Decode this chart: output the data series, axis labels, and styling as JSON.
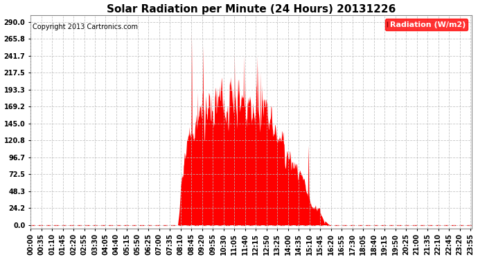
{
  "title": "Solar Radiation per Minute (24 Hours) 20131226",
  "copyright": "Copyright 2013 Cartronics.com",
  "legend_label": "Radiation (W/m2)",
  "ylabel_values": [
    0.0,
    24.2,
    48.3,
    72.5,
    96.7,
    120.8,
    145.0,
    169.2,
    193.3,
    217.5,
    241.7,
    265.8,
    290.0
  ],
  "ymax": 300.0,
  "ymin": -5.0,
  "fill_color": "#FF0000",
  "line_color": "#FF0000",
  "background_color": "#FFFFFF",
  "grid_color": "#BBBBBB",
  "dashed_zero_color": "#FF0000",
  "title_fontsize": 11,
  "copyright_fontsize": 7,
  "tick_fontsize": 7,
  "legend_fontsize": 8,
  "label_interval_min": 35,
  "sunrise_min": 480,
  "sunset_min": 975
}
